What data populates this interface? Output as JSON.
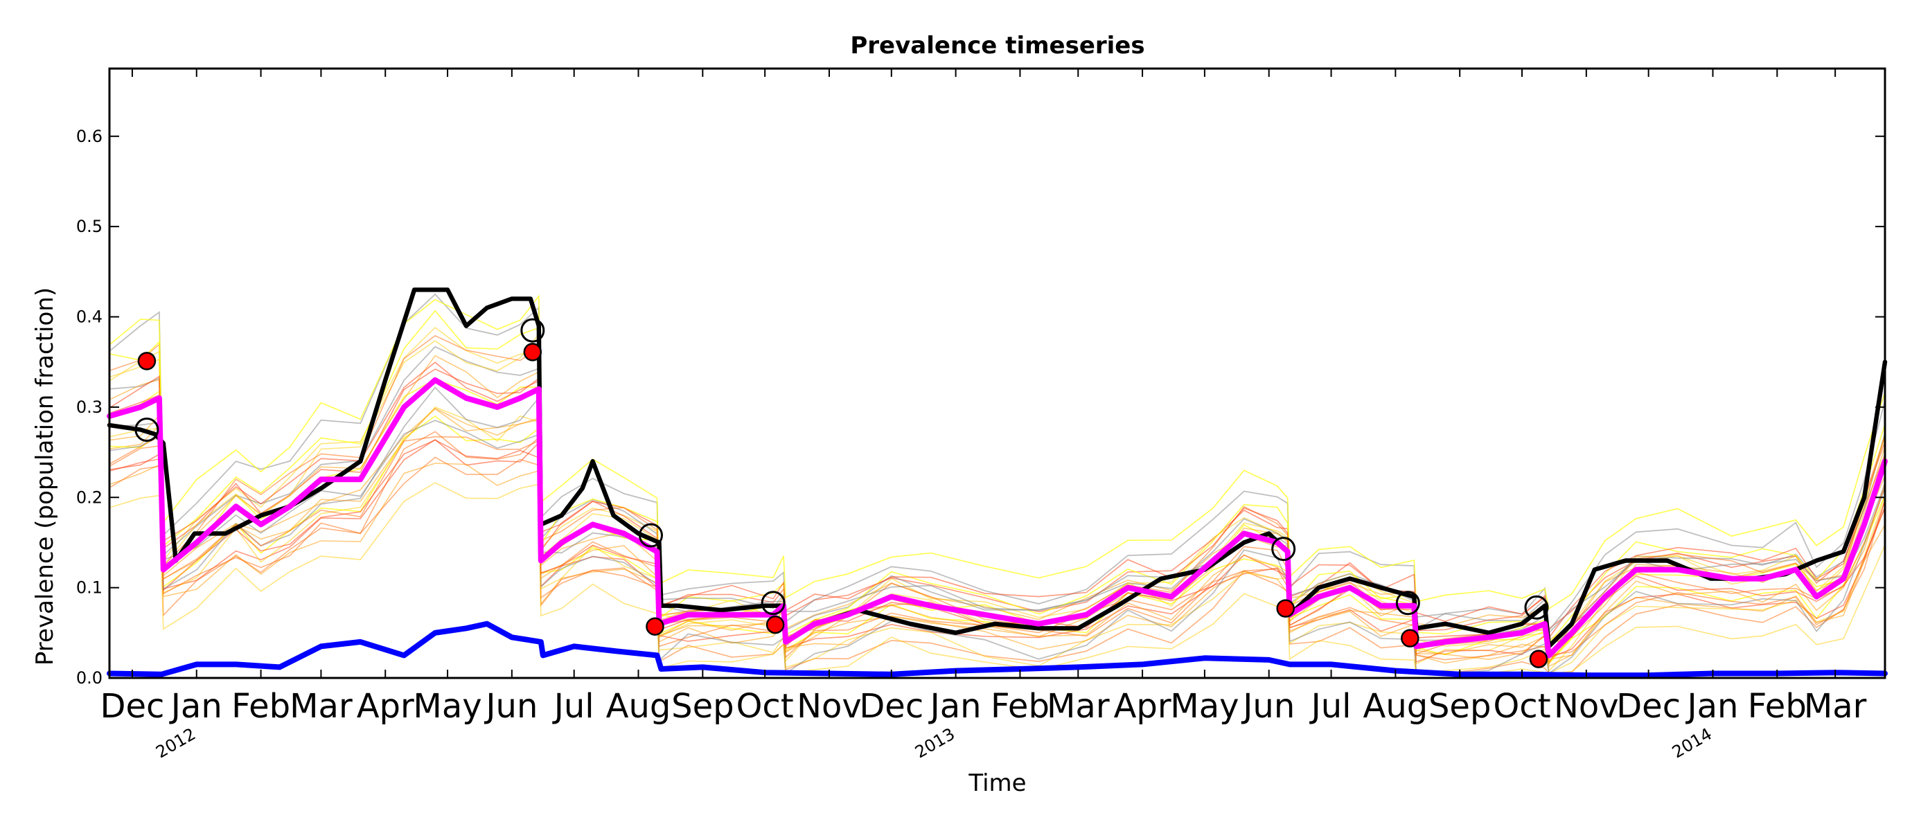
{
  "chart_data": {
    "type": "line",
    "title": "Prevalence timeseries",
    "xlabel": "Time",
    "ylabel": "Prevalence (population fraction)",
    "ylim": [
      0,
      0.675
    ],
    "xlim": [
      "2011-11-20",
      "2014-03-25"
    ],
    "grid": false,
    "y_ticks": [
      0.0,
      0.1,
      0.2,
      0.3,
      0.4,
      0.5,
      0.6
    ],
    "x_month_ticks": [
      {
        "date": "2011-12-01",
        "label": "Dec"
      },
      {
        "date": "2012-01-01",
        "label": "Jan"
      },
      {
        "date": "2012-02-01",
        "label": "Feb"
      },
      {
        "date": "2012-03-01",
        "label": "Mar"
      },
      {
        "date": "2012-04-01",
        "label": "Apr"
      },
      {
        "date": "2012-05-01",
        "label": "May"
      },
      {
        "date": "2012-06-01",
        "label": "Jun"
      },
      {
        "date": "2012-07-01",
        "label": "Jul"
      },
      {
        "date": "2012-08-01",
        "label": "Aug"
      },
      {
        "date": "2012-09-01",
        "label": "Sep"
      },
      {
        "date": "2012-10-01",
        "label": "Oct"
      },
      {
        "date": "2012-11-01",
        "label": "Nov"
      },
      {
        "date": "2012-12-01",
        "label": "Dec"
      },
      {
        "date": "2013-01-01",
        "label": "Jan"
      },
      {
        "date": "2013-02-01",
        "label": "Feb"
      },
      {
        "date": "2013-03-01",
        "label": "Mar"
      },
      {
        "date": "2013-04-01",
        "label": "Apr"
      },
      {
        "date": "2013-05-01",
        "label": "May"
      },
      {
        "date": "2013-06-01",
        "label": "Jun"
      },
      {
        "date": "2013-07-01",
        "label": "Jul"
      },
      {
        "date": "2013-08-01",
        "label": "Aug"
      },
      {
        "date": "2013-09-01",
        "label": "Sep"
      },
      {
        "date": "2013-10-01",
        "label": "Oct"
      },
      {
        "date": "2013-11-01",
        "label": "Nov"
      },
      {
        "date": "2013-12-01",
        "label": "Dec"
      },
      {
        "date": "2014-01-01",
        "label": "Jan"
      },
      {
        "date": "2014-02-01",
        "label": "Feb"
      },
      {
        "date": "2014-03-01",
        "label": "Mar"
      }
    ],
    "x_year_ticks": [
      {
        "date": "2012-01-01",
        "label": "2012"
      },
      {
        "date": "2013-01-01",
        "label": "2013"
      },
      {
        "date": "2014-01-01",
        "label": "2014"
      }
    ],
    "series": [
      {
        "color": "#000000",
        "width": 4,
        "x": [
          "2011-11-20",
          "2011-12-05",
          "2011-12-12",
          "2011-12-16",
          "2011-12-22",
          "2011-12-31",
          "2012-01-15",
          "2012-02-01",
          "2012-02-15",
          "2012-03-01",
          "2012-03-20",
          "2012-04-01",
          "2012-04-15",
          "2012-05-01",
          "2012-05-10",
          "2012-05-20",
          "2012-06-01",
          "2012-06-10",
          "2012-06-14",
          "2012-06-15",
          "2012-06-25",
          "2012-07-05",
          "2012-07-10",
          "2012-07-20",
          "2012-08-01",
          "2012-08-11",
          "2012-08-12",
          "2012-08-20",
          "2012-09-10",
          "2012-10-01",
          "2012-10-10",
          "2012-10-11",
          "2012-10-25",
          "2012-11-15",
          "2012-12-10",
          "2013-01-01",
          "2013-01-20",
          "2013-02-10",
          "2013-03-01",
          "2013-03-20",
          "2013-04-10",
          "2013-05-01",
          "2013-05-20",
          "2013-06-01",
          "2013-06-10",
          "2013-06-11",
          "2013-06-25",
          "2013-07-10",
          "2013-07-25",
          "2013-08-10",
          "2013-08-11",
          "2013-08-25",
          "2013-09-15",
          "2013-10-01",
          "2013-10-12",
          "2013-10-14",
          "2013-10-25",
          "2013-11-05",
          "2013-11-20",
          "2013-12-10",
          "2013-12-31",
          "2014-01-20",
          "2014-02-05",
          "2014-02-20",
          "2014-03-05",
          "2014-03-15",
          "2014-03-25"
        ],
        "y": [
          0.28,
          0.275,
          0.27,
          0.26,
          0.13,
          0.16,
          0.16,
          0.18,
          0.19,
          0.21,
          0.24,
          0.33,
          0.43,
          0.43,
          0.39,
          0.41,
          0.42,
          0.42,
          0.39,
          0.17,
          0.18,
          0.21,
          0.24,
          0.18,
          0.16,
          0.15,
          0.08,
          0.08,
          0.075,
          0.08,
          0.08,
          0.04,
          0.06,
          0.075,
          0.06,
          0.05,
          0.06,
          0.055,
          0.055,
          0.08,
          0.11,
          0.12,
          0.15,
          0.16,
          0.14,
          0.07,
          0.1,
          0.11,
          0.1,
          0.09,
          0.055,
          0.06,
          0.05,
          0.06,
          0.08,
          0.035,
          0.06,
          0.12,
          0.13,
          0.13,
          0.11,
          0.11,
          0.115,
          0.13,
          0.14,
          0.2,
          0.35
        ]
      },
      {
        "color": "#ff00ff",
        "width": 5,
        "x": [
          "2011-11-20",
          "2011-12-05",
          "2011-12-14",
          "2011-12-16",
          "2012-01-01",
          "2012-01-20",
          "2012-02-01",
          "2012-02-15",
          "2012-03-01",
          "2012-03-20",
          "2012-04-10",
          "2012-04-25",
          "2012-05-10",
          "2012-05-25",
          "2012-06-05",
          "2012-06-14",
          "2012-06-15",
          "2012-06-25",
          "2012-07-10",
          "2012-07-25",
          "2012-08-10",
          "2012-08-11",
          "2012-08-25",
          "2012-09-15",
          "2012-10-05",
          "2012-10-10",
          "2012-10-11",
          "2012-10-25",
          "2012-11-10",
          "2012-12-01",
          "2012-12-20",
          "2013-01-15",
          "2013-02-10",
          "2013-03-05",
          "2013-03-25",
          "2013-04-15",
          "2013-05-05",
          "2013-05-20",
          "2013-06-05",
          "2013-06-10",
          "2013-06-11",
          "2013-06-25",
          "2013-07-10",
          "2013-07-25",
          "2013-08-10",
          "2013-08-11",
          "2013-08-25",
          "2013-09-15",
          "2013-10-01",
          "2013-10-12",
          "2013-10-14",
          "2013-10-25",
          "2013-11-10",
          "2013-11-25",
          "2013-12-15",
          "2014-01-10",
          "2014-01-25",
          "2014-02-10",
          "2014-02-20",
          "2014-03-05",
          "2014-03-15",
          "2014-03-25"
        ],
        "y": [
          0.29,
          0.3,
          0.31,
          0.12,
          0.15,
          0.19,
          0.17,
          0.19,
          0.22,
          0.22,
          0.3,
          0.33,
          0.31,
          0.3,
          0.31,
          0.32,
          0.13,
          0.15,
          0.17,
          0.16,
          0.14,
          0.06,
          0.07,
          0.07,
          0.07,
          0.08,
          0.04,
          0.06,
          0.07,
          0.09,
          0.08,
          0.07,
          0.06,
          0.07,
          0.1,
          0.09,
          0.13,
          0.16,
          0.15,
          0.14,
          0.07,
          0.09,
          0.1,
          0.08,
          0.08,
          0.035,
          0.04,
          0.045,
          0.05,
          0.06,
          0.025,
          0.05,
          0.09,
          0.12,
          0.12,
          0.11,
          0.11,
          0.12,
          0.09,
          0.11,
          0.17,
          0.24
        ]
      },
      {
        "color": "#0000ff",
        "width": 5,
        "x": [
          "2011-11-20",
          "2011-12-15",
          "2012-01-01",
          "2012-01-20",
          "2012-02-10",
          "2012-03-01",
          "2012-03-20",
          "2012-04-10",
          "2012-04-25",
          "2012-05-10",
          "2012-05-20",
          "2012-06-01",
          "2012-06-15",
          "2012-06-16",
          "2012-07-01",
          "2012-07-20",
          "2012-08-10",
          "2012-08-12",
          "2012-09-01",
          "2012-10-01",
          "2012-11-01",
          "2012-12-01",
          "2013-01-01",
          "2013-02-01",
          "2013-03-01",
          "2013-04-01",
          "2013-05-01",
          "2013-06-01",
          "2013-06-11",
          "2013-07-01",
          "2013-08-01",
          "2013-09-01",
          "2013-10-01",
          "2013-11-01",
          "2013-12-01",
          "2014-01-01",
          "2014-02-01",
          "2014-03-01",
          "2014-03-25"
        ],
        "y": [
          0.005,
          0.004,
          0.015,
          0.015,
          0.012,
          0.035,
          0.04,
          0.025,
          0.05,
          0.055,
          0.06,
          0.045,
          0.04,
          0.025,
          0.035,
          0.03,
          0.025,
          0.01,
          0.012,
          0.006,
          0.005,
          0.004,
          0.008,
          0.01,
          0.012,
          0.015,
          0.022,
          0.02,
          0.015,
          0.015,
          0.008,
          0.004,
          0.004,
          0.003,
          0.003,
          0.005,
          0.005,
          0.006,
          0.005
        ]
      }
    ],
    "markers_open": [
      {
        "x": "2011-12-08",
        "y": 0.275
      },
      {
        "x": "2012-06-11",
        "y": 0.385
      },
      {
        "x": "2012-08-07",
        "y": 0.158
      },
      {
        "x": "2012-10-05",
        "y": 0.083
      },
      {
        "x": "2013-06-08",
        "y": 0.143
      },
      {
        "x": "2013-08-07",
        "y": 0.083
      },
      {
        "x": "2013-10-08",
        "y": 0.078
      }
    ],
    "markers_filled": [
      {
        "x": "2011-12-08",
        "y": 0.351
      },
      {
        "x": "2012-06-11",
        "y": 0.361
      },
      {
        "x": "2012-08-09",
        "y": 0.057
      },
      {
        "x": "2012-10-06",
        "y": 0.059
      },
      {
        "x": "2013-06-09",
        "y": 0.077
      },
      {
        "x": "2013-08-08",
        "y": 0.044
      },
      {
        "x": "2013-10-09",
        "y": 0.021
      }
    ],
    "ensemble_line_colors": [
      "#ffff00",
      "#ffcc00",
      "#ff9900",
      "#ff6600",
      "#ff3300",
      "#808080"
    ]
  }
}
